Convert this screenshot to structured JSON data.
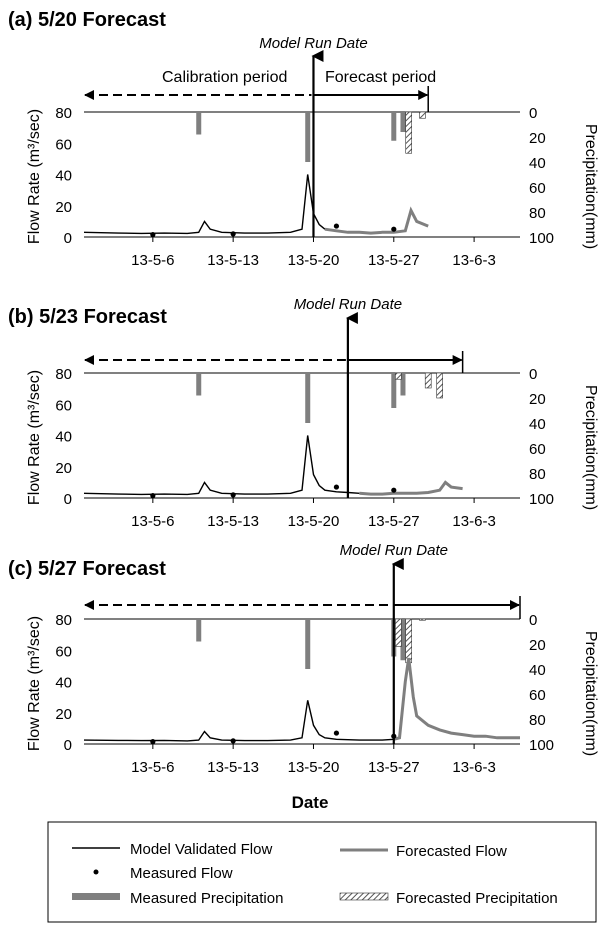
{
  "x_axis_label": "Date",
  "axis_labels": {
    "left": "Flow Rate (m³/sec)",
    "right": "Precipitation(mm)"
  },
  "annotations": {
    "model_run_date": "Model Run Date",
    "calibration_period": "Calibration period",
    "forecast_period": "Forecast period"
  },
  "colors": {
    "model": "#000000",
    "forecast_flow": "#7f7f7f",
    "measured_precip": "#7f7f7f",
    "forecast_precip_hatch": "#555555"
  },
  "legend": {
    "model_validated_flow": "Model Validated Flow",
    "forecasted_flow": "Forecasted Flow",
    "measured_flow": "Measured Flow",
    "measured_precipitation": "Measured Precipitation",
    "forecasted_precipitation": "Forecasted Precipitation"
  },
  "chart_data": [
    {
      "type": "line",
      "title": "(a) 5/20 Forecast",
      "x_ticks": [
        "13-5-6",
        "13-5-13",
        "13-5-20",
        "13-5-27",
        "13-6-3"
      ],
      "y_left_ticks": [
        0,
        20,
        40,
        60,
        80
      ],
      "y_right_ticks": [
        0,
        20,
        40,
        60,
        80,
        100
      ],
      "xlim": [
        "2013-04-30",
        "2013-06-07"
      ],
      "ylim_left": [
        0,
        80
      ],
      "ylim_right": [
        0,
        100
      ],
      "model_run_date": "2013-05-20",
      "arrow_range": [
        "2013-04-30",
        "2013-05-30"
      ],
      "model_validated_flow": [
        [
          "2013-04-30",
          3
        ],
        [
          "2013-05-03",
          2.5
        ],
        [
          "2013-05-05",
          2.3
        ],
        [
          "2013-05-07",
          2.5
        ],
        [
          "2013-05-09",
          2.3
        ],
        [
          "2013-05-10",
          3
        ],
        [
          "2013-05-10.5",
          10
        ],
        [
          "2013-05-11",
          5
        ],
        [
          "2013-05-12",
          3
        ],
        [
          "2013-05-14",
          2.5
        ],
        [
          "2013-05-16",
          2.5
        ],
        [
          "2013-05-18",
          3
        ],
        [
          "2013-05-19",
          5
        ],
        [
          "2013-05-19.5",
          40
        ],
        [
          "2013-05-20",
          15
        ],
        [
          "2013-05-20.5",
          8
        ],
        [
          "2013-05-21",
          5
        ]
      ],
      "forecasted_flow": [
        [
          "2013-05-21",
          5
        ],
        [
          "2013-05-22",
          4
        ],
        [
          "2013-05-23",
          3
        ],
        [
          "2013-05-24",
          3
        ],
        [
          "2013-05-25",
          2.5
        ],
        [
          "2013-05-26",
          3
        ],
        [
          "2013-05-27",
          3
        ],
        [
          "2013-05-28",
          4
        ],
        [
          "2013-05-28.5",
          17
        ],
        [
          "2013-05-29",
          10
        ],
        [
          "2013-05-30",
          7
        ]
      ],
      "measured_flow_points": [
        [
          "2013-05-06",
          1.5
        ],
        [
          "2013-05-13",
          2
        ],
        [
          "2013-05-22",
          7
        ],
        [
          "2013-05-27",
          5
        ]
      ],
      "measured_precipitation": [
        [
          "2013-05-10",
          18
        ],
        [
          "2013-05-19.5",
          40
        ],
        [
          "2013-05-27",
          23
        ],
        [
          "2013-05-27.8",
          16
        ]
      ],
      "forecasted_precipitation": [
        [
          "2013-05-28.3",
          33
        ],
        [
          "2013-05-29.5",
          5
        ]
      ]
    },
    {
      "type": "line",
      "title": "(b) 5/23 Forecast",
      "x_ticks": [
        "13-5-6",
        "13-5-13",
        "13-5-20",
        "13-5-27",
        "13-6-3"
      ],
      "y_left_ticks": [
        0,
        20,
        40,
        60,
        80
      ],
      "y_right_ticks": [
        0,
        20,
        40,
        60,
        80,
        100
      ],
      "xlim": [
        "2013-04-30",
        "2013-06-07"
      ],
      "ylim_left": [
        0,
        80
      ],
      "ylim_right": [
        0,
        100
      ],
      "model_run_date": "2013-05-23",
      "arrow_range": [
        "2013-04-30",
        "2013-06-02"
      ],
      "model_validated_flow": [
        [
          "2013-04-30",
          3
        ],
        [
          "2013-05-03",
          2.5
        ],
        [
          "2013-05-05",
          2.3
        ],
        [
          "2013-05-07",
          2.5
        ],
        [
          "2013-05-09",
          2.3
        ],
        [
          "2013-05-10",
          3
        ],
        [
          "2013-05-10.5",
          10
        ],
        [
          "2013-05-11",
          5
        ],
        [
          "2013-05-12",
          3
        ],
        [
          "2013-05-14",
          2.5
        ],
        [
          "2013-05-16",
          2.5
        ],
        [
          "2013-05-18",
          3
        ],
        [
          "2013-05-19",
          5
        ],
        [
          "2013-05-19.5",
          40
        ],
        [
          "2013-05-20",
          15
        ],
        [
          "2013-05-20.5",
          8
        ],
        [
          "2013-05-21",
          5
        ],
        [
          "2013-05-22",
          4
        ],
        [
          "2013-05-23",
          3.5
        ],
        [
          "2013-05-24",
          3
        ]
      ],
      "forecasted_flow": [
        [
          "2013-05-24",
          3
        ],
        [
          "2013-05-25",
          2.5
        ],
        [
          "2013-05-26",
          2.5
        ],
        [
          "2013-05-27",
          3
        ],
        [
          "2013-05-28",
          3
        ],
        [
          "2013-05-29",
          3
        ],
        [
          "2013-05-30",
          3.5
        ],
        [
          "2013-05-31",
          5
        ],
        [
          "2013-05-31.5",
          10
        ],
        [
          "2013-06-01",
          7
        ],
        [
          "2013-06-02",
          6
        ]
      ],
      "measured_flow_points": [
        [
          "2013-05-06",
          1.5
        ],
        [
          "2013-05-13",
          2
        ],
        [
          "2013-05-22",
          7
        ],
        [
          "2013-05-27",
          5
        ]
      ],
      "measured_precipitation": [
        [
          "2013-05-10",
          18
        ],
        [
          "2013-05-19.5",
          40
        ],
        [
          "2013-05-27",
          28
        ],
        [
          "2013-05-27.8",
          18
        ]
      ],
      "forecasted_precipitation": [
        [
          "2013-05-27.4",
          5
        ],
        [
          "2013-05-30",
          12
        ],
        [
          "2013-05-31",
          20
        ]
      ]
    },
    {
      "type": "line",
      "title": "(c) 5/27 Forecast",
      "x_ticks": [
        "13-5-6",
        "13-5-13",
        "13-5-20",
        "13-5-27",
        "13-6-3"
      ],
      "y_left_ticks": [
        0,
        20,
        40,
        60,
        80
      ],
      "y_right_ticks": [
        0,
        20,
        40,
        60,
        80,
        100
      ],
      "xlim": [
        "2013-04-30",
        "2013-06-07"
      ],
      "ylim_left": [
        0,
        80
      ],
      "ylim_right": [
        0,
        100
      ],
      "model_run_date": "2013-05-27",
      "arrow_range": [
        "2013-04-30",
        "2013-06-07"
      ],
      "model_validated_flow": [
        [
          "2013-04-30",
          2.5
        ],
        [
          "2013-05-03",
          2.3
        ],
        [
          "2013-05-05",
          2.2
        ],
        [
          "2013-05-07",
          2.3
        ],
        [
          "2013-05-09",
          2
        ],
        [
          "2013-05-10",
          2.5
        ],
        [
          "2013-05-10.5",
          8
        ],
        [
          "2013-05-11",
          4
        ],
        [
          "2013-05-12",
          2.5
        ],
        [
          "2013-05-14",
          2.2
        ],
        [
          "2013-05-16",
          2.2
        ],
        [
          "2013-05-18",
          2.5
        ],
        [
          "2013-05-19",
          4
        ],
        [
          "2013-05-19.5",
          28
        ],
        [
          "2013-05-20",
          12
        ],
        [
          "2013-05-20.5",
          6
        ],
        [
          "2013-05-21",
          4
        ],
        [
          "2013-05-22",
          3
        ],
        [
          "2013-05-24",
          2.5
        ],
        [
          "2013-05-26",
          2.5
        ],
        [
          "2013-05-27",
          3
        ]
      ],
      "forecasted_flow": [
        [
          "2013-05-27",
          3
        ],
        [
          "2013-05-27.5",
          4
        ],
        [
          "2013-05-28",
          40
        ],
        [
          "2013-05-28.3",
          55
        ],
        [
          "2013-05-28.7",
          30
        ],
        [
          "2013-05-29",
          18
        ],
        [
          "2013-05-30",
          12
        ],
        [
          "2013-05-31",
          9
        ],
        [
          "2013-06-01",
          7
        ],
        [
          "2013-06-02",
          6
        ],
        [
          "2013-06-03",
          5
        ],
        [
          "2013-06-04",
          5
        ],
        [
          "2013-06-05",
          4
        ],
        [
          "2013-06-06",
          4
        ],
        [
          "2013-06-07",
          4
        ]
      ],
      "measured_flow_points": [
        [
          "2013-05-06",
          1.5
        ],
        [
          "2013-05-13",
          2
        ],
        [
          "2013-05-22",
          7
        ],
        [
          "2013-05-27",
          5
        ]
      ],
      "measured_precipitation": [
        [
          "2013-05-10",
          18
        ],
        [
          "2013-05-19.5",
          40
        ],
        [
          "2013-05-27",
          30
        ],
        [
          "2013-05-27.8",
          33
        ]
      ],
      "forecasted_precipitation": [
        [
          "2013-05-27.4",
          22
        ],
        [
          "2013-05-28.3",
          35
        ],
        [
          "2013-05-29.5",
          1
        ]
      ]
    }
  ]
}
